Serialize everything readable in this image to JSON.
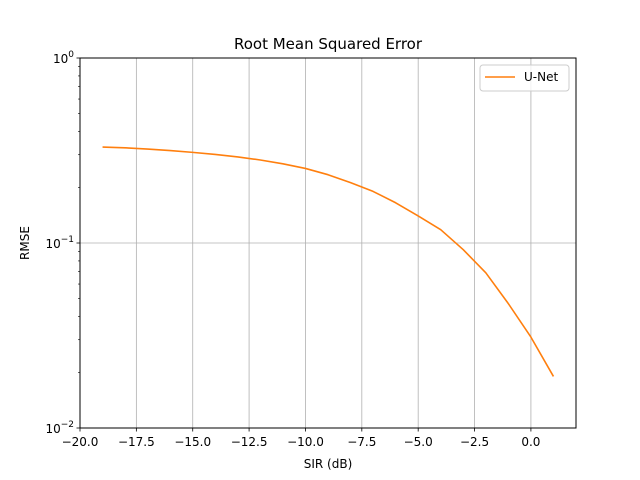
{
  "chart_data": {
    "type": "line",
    "title": "Root Mean Squared Error",
    "xlabel": "SIR (dB)",
    "ylabel": "RMSE",
    "xlim": [
      -20,
      2
    ],
    "ylim": [
      0.01,
      1
    ],
    "yscale": "log",
    "grid": "x-major, y-decades",
    "legend_position": "top-right",
    "x_ticks": [
      -20,
      -17.5,
      -15,
      -12.5,
      -10,
      -7.5,
      -5,
      -2.5,
      0
    ],
    "x_tick_labels": [
      "−20.0",
      "−17.5",
      "−15.0",
      "−12.5",
      "−10.0",
      "−7.5",
      "−5.0",
      "−2.5",
      "0.0"
    ],
    "y_ticks": [
      0.01,
      0.1,
      1
    ],
    "y_tick_labels": [
      {
        "base": "10",
        "exp": "−2"
      },
      {
        "base": "10",
        "exp": "−1"
      },
      {
        "base": "10",
        "exp": "0"
      }
    ],
    "series": [
      {
        "name": "U-Net",
        "color": "#ff7f0e",
        "x": [
          -19,
          -18,
          -17,
          -16,
          -15,
          -14,
          -13,
          -12,
          -11,
          -10,
          -9,
          -8,
          -7,
          -6,
          -5,
          -4,
          -3,
          -2,
          -1,
          0,
          1
        ],
        "y": [
          0.33,
          0.327,
          0.322,
          0.316,
          0.309,
          0.301,
          0.292,
          0.281,
          0.268,
          0.253,
          0.234,
          0.212,
          0.19,
          0.165,
          0.14,
          0.118,
          0.092,
          0.069,
          0.047,
          0.031,
          0.019
        ]
      }
    ]
  }
}
